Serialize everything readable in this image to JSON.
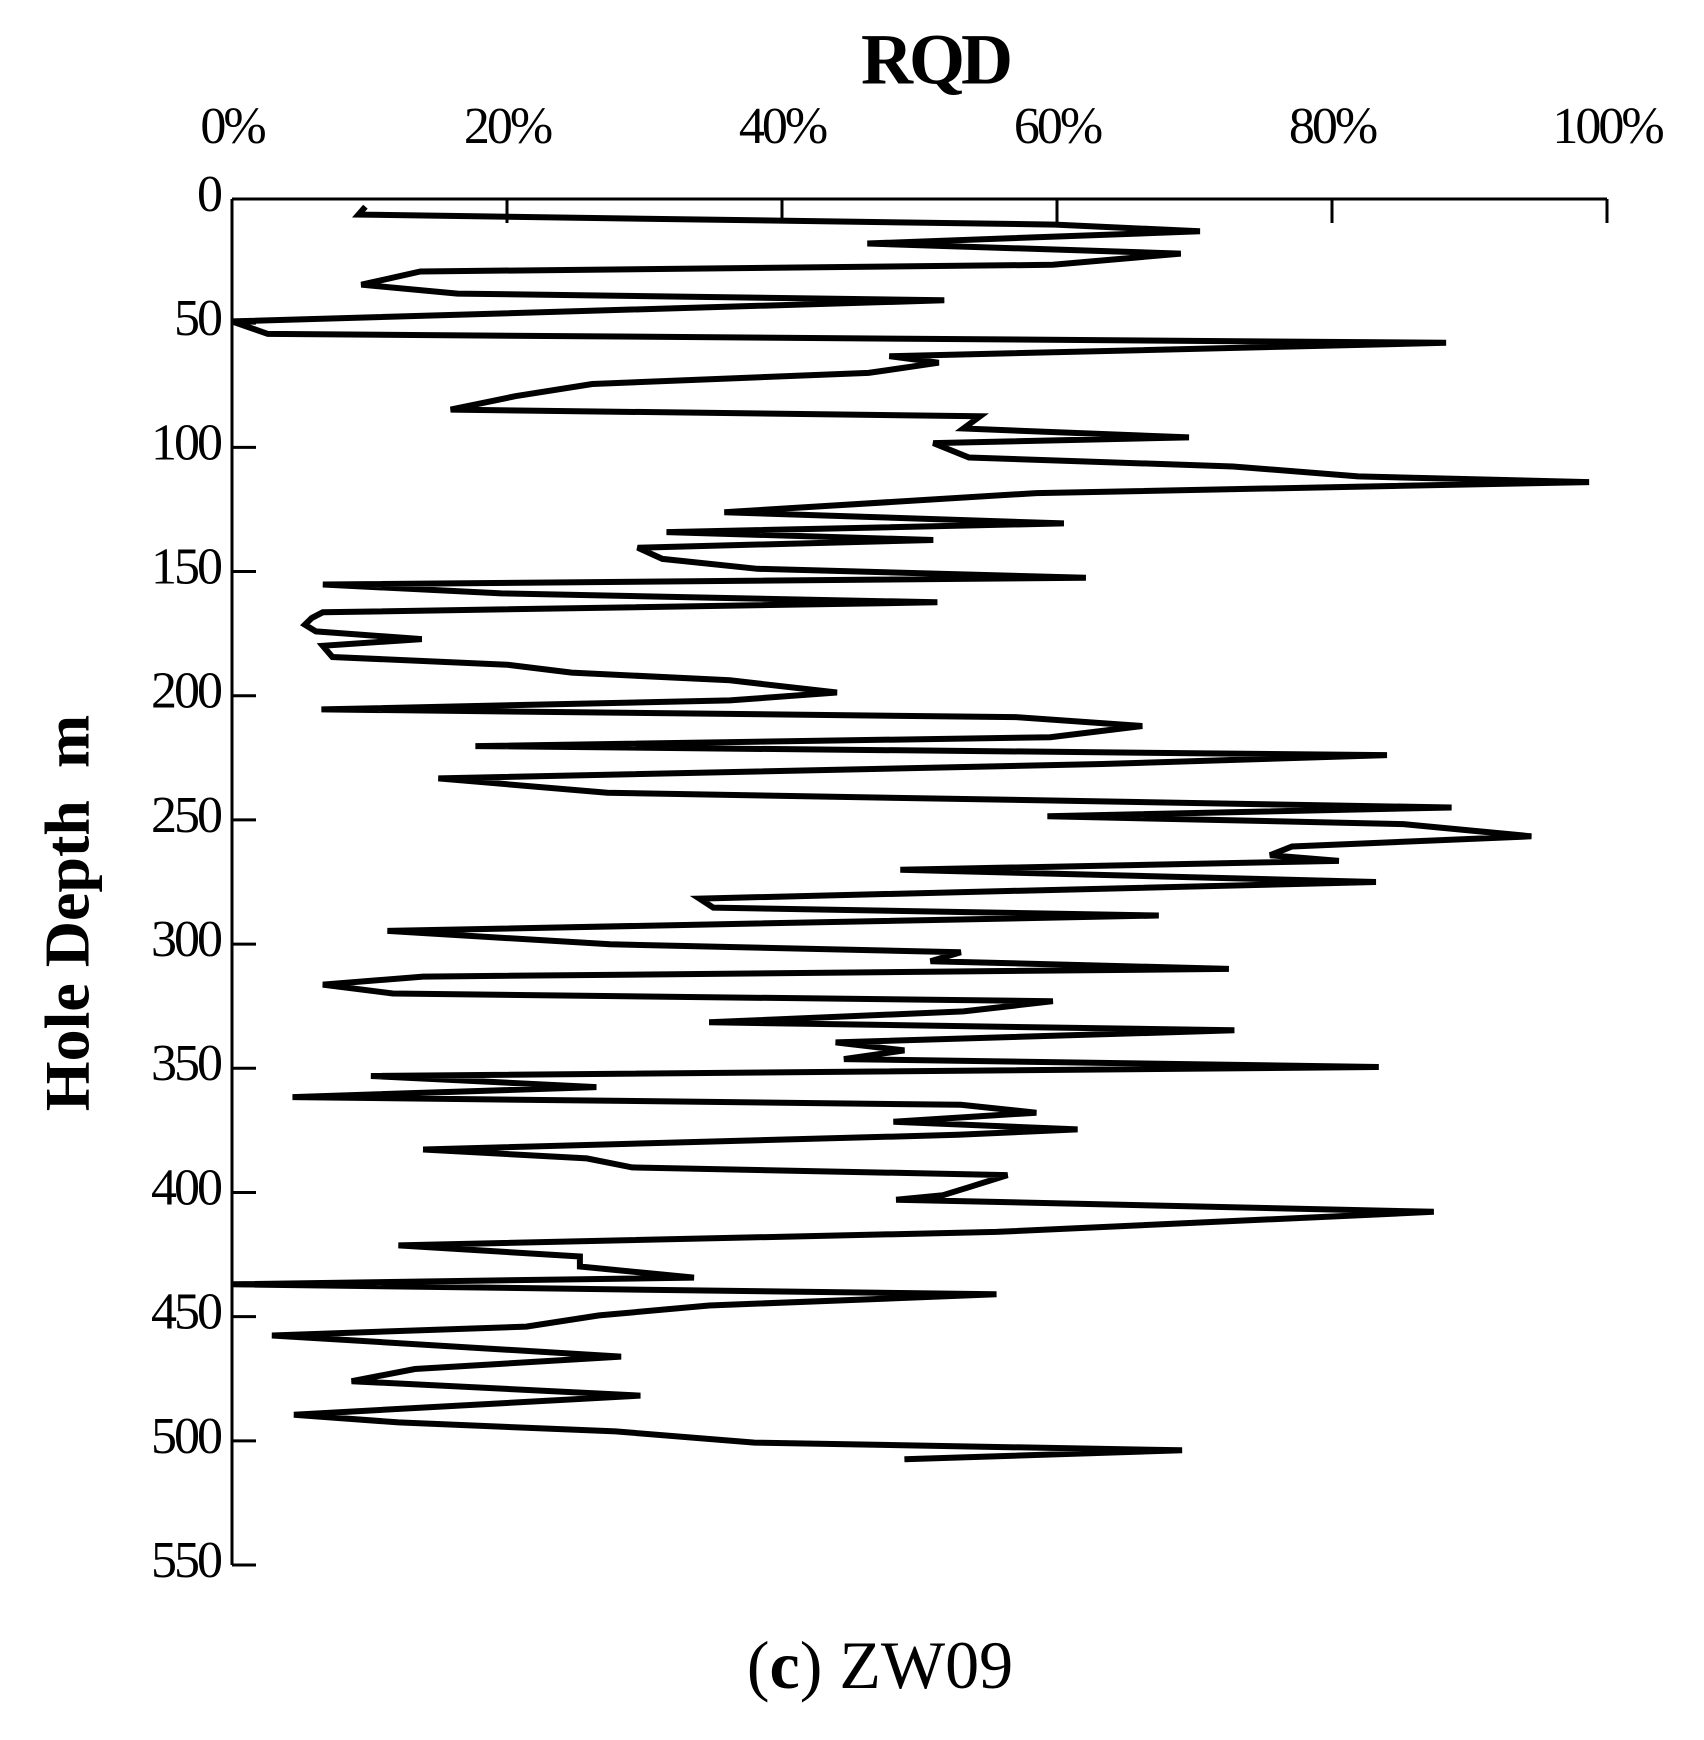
{
  "chart_data": {
    "type": "line",
    "title": "RQD",
    "y_label": "Hole Depth  m",
    "caption": [
      "(",
      "c",
      ") ZW09"
    ],
    "color": "#000000",
    "x": [
      9.7,
      9.2,
      59.9,
      70.4,
      46.2,
      69.0,
      59.7,
      13.7,
      9.4,
      16.4,
      51.8,
      0,
      2.6,
      88.3,
      47.8,
      51.4,
      46.3,
      26.2,
      20.6,
      15.9,
      54.4,
      53.2,
      69.6,
      51.0,
      53.6,
      72.8,
      81.9,
      98.7,
      58.5,
      35.8,
      60.5,
      31.6,
      51.0,
      29.5,
      31.3,
      38.2,
      62.1,
      6.6,
      19.6,
      51.3,
      6.6,
      5.8,
      5.3,
      6.1,
      13.8,
      6.6,
      7.3,
      20.0,
      24.7,
      36.2,
      44.0,
      36.2,
      6.5,
      57.0,
      66.2,
      59.5,
      17.7,
      84.0,
      63.3,
      15.0,
      27.3,
      88.7,
      59.3,
      85.2,
      94.5,
      77.1,
      75.5,
      80.5,
      48.6,
      83.2,
      34.0,
      35.0,
      67.4,
      11.3,
      27.5,
      53.0,
      50.8,
      72.5,
      13.9,
      6.6,
      11.7,
      59.7,
      53.2,
      34.7,
      72.9,
      43.9,
      48.9,
      44.5,
      83.4,
      10.1,
      26.5,
      4.4,
      53.0,
      58.5,
      48.1,
      61.5,
      52.8,
      13.9,
      25.8,
      29.1,
      56.4,
      53.6,
      51.7,
      48.3,
      87.4,
      55.6,
      12.1,
      25.3,
      25.3,
      33.6,
      0,
      55.6,
      34.7,
      26.7,
      21.4,
      2.9,
      28.3,
      13.3,
      8.7,
      29.7,
      4.5,
      12.1,
      27.9,
      38.0,
      69.1,
      48.9
    ],
    "y": [
      3.1,
      6.3,
      10.3,
      13.0,
      17.9,
      22.0,
      26.5,
      29.2,
      34.5,
      38.1,
      40.8,
      49.3,
      54.3,
      57.9,
      63.3,
      65.9,
      70.0,
      74.5,
      79.4,
      84.8,
      87.5,
      92.4,
      96.0,
      98.3,
      104.1,
      107.7,
      111.7,
      114.0,
      118.4,
      126.1,
      130.6,
      134.1,
      137.3,
      140.4,
      144.9,
      148.9,
      152.5,
      155.2,
      158.8,
      162.4,
      166.4,
      168.7,
      171.4,
      174.1,
      177.2,
      179.9,
      184.4,
      187.5,
      190.7,
      193.8,
      198.7,
      201.9,
      205.5,
      208.6,
      212.2,
      216.7,
      220.3,
      223.9,
      227.5,
      233.3,
      239.1,
      245.0,
      248.5,
      251.7,
      256.6,
      260.7,
      264.2,
      266.5,
      270.1,
      275.0,
      281.7,
      285.3,
      288.5,
      294.7,
      300.1,
      303.3,
      306.9,
      310.0,
      313.1,
      316.3,
      319.9,
      323.0,
      327.1,
      331.5,
      334.7,
      339.6,
      342.8,
      346.3,
      349.5,
      353.1,
      357.6,
      361.6,
      364.7,
      367.9,
      371.5,
      374.6,
      376.8,
      382.7,
      386.3,
      389.9,
      393.0,
      397.9,
      401.1,
      402.9,
      407.8,
      415.9,
      421.3,
      425.8,
      429.8,
      434.3,
      437.0,
      441.0,
      445.5,
      449.5,
      454.0,
      457.6,
      466.1,
      471.1,
      476.0,
      481.8,
      489.5,
      492.6,
      496.2,
      500.7,
      503.8,
      507.4
    ],
    "xlim": [
      0,
      100
    ],
    "xticks": [
      {
        "value": 0,
        "label": "0%"
      },
      {
        "value": 20,
        "label": "20%"
      },
      {
        "value": 40,
        "label": "40%"
      },
      {
        "value": 60,
        "label": "60%"
      },
      {
        "value": 80,
        "label": "80%"
      },
      {
        "value": 100,
        "label": "100%"
      }
    ],
    "ylim": [
      0,
      550
    ],
    "y_inverted": true,
    "yticks": [
      0,
      50,
      100,
      150,
      200,
      250,
      300,
      350,
      400,
      450,
      500,
      550
    ]
  }
}
